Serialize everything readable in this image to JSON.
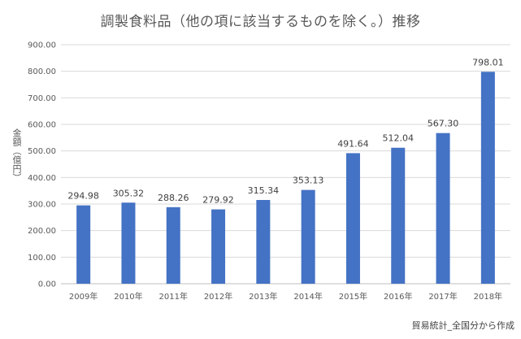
{
  "chart_data": {
    "type": "bar",
    "title": "調製食料品（他の項に該当するものを除く。）推移",
    "ylabel": "金額（億円）",
    "xlabel": "",
    "categories": [
      "2009年",
      "2010年",
      "2011年",
      "2012年",
      "2013年",
      "2014年",
      "2015年",
      "2016年",
      "2017年",
      "2018年"
    ],
    "values": [
      294.98,
      305.32,
      288.26,
      279.92,
      315.34,
      353.13,
      491.64,
      512.04,
      567.3,
      798.01
    ],
    "value_labels": [
      "294.98",
      "305.32",
      "288.26",
      "279.92",
      "315.34",
      "353.13",
      "491.64",
      "512.04",
      "567.30",
      "798.01"
    ],
    "ylim": [
      0,
      900
    ],
    "y_ticks": [
      "0.00",
      "100.00",
      "200.00",
      "300.00",
      "400.00",
      "500.00",
      "600.00",
      "700.00",
      "800.00",
      "900.00"
    ],
    "bar_color": "#4472C4",
    "grid": true,
    "legend": "none",
    "source": "貿易統計_全国分から作成"
  }
}
